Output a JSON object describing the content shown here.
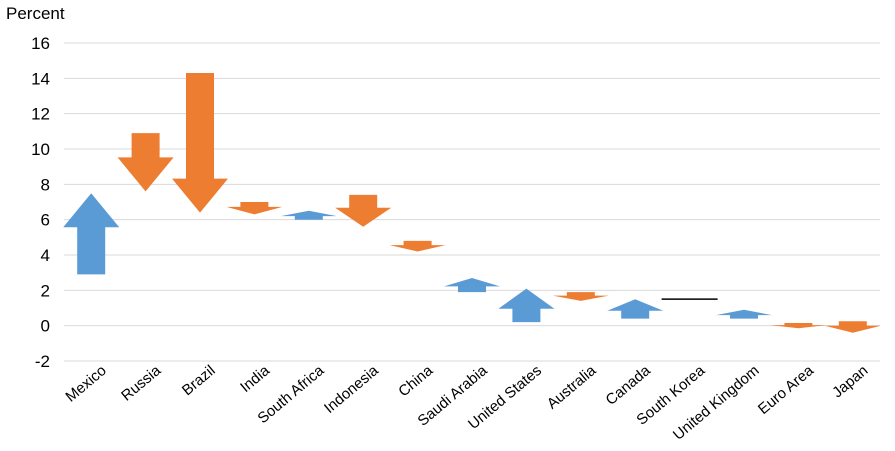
{
  "chart_data": {
    "type": "arrow",
    "ylabel": "Percent",
    "ylim": [
      -2,
      16
    ],
    "yticks": [
      -2,
      0,
      2,
      4,
      6,
      8,
      10,
      12,
      14,
      16
    ],
    "grid": true,
    "categories": [
      "Mexico",
      "Russia",
      "Brazil",
      "India",
      "South Africa",
      "Indonesia",
      "China",
      "Saudi Arabia",
      "United States",
      "Australia",
      "Canada",
      "South Korea",
      "United Kingdom",
      "Euro Area",
      "Japan"
    ],
    "start": [
      2.9,
      10.9,
      14.3,
      7.0,
      6.0,
      7.4,
      4.8,
      1.9,
      0.2,
      1.9,
      0.4,
      1.5,
      0.4,
      0.15,
      0.25
    ],
    "end": [
      7.5,
      7.6,
      6.4,
      6.3,
      6.5,
      5.6,
      4.2,
      2.7,
      2.1,
      1.4,
      1.5,
      1.5,
      0.9,
      -0.15,
      -0.4
    ],
    "colors": {
      "increase": "#5B9BD5",
      "decrease": "#ED7D31",
      "unchanged": "#000000",
      "grid": "#d9d9d9"
    }
  }
}
